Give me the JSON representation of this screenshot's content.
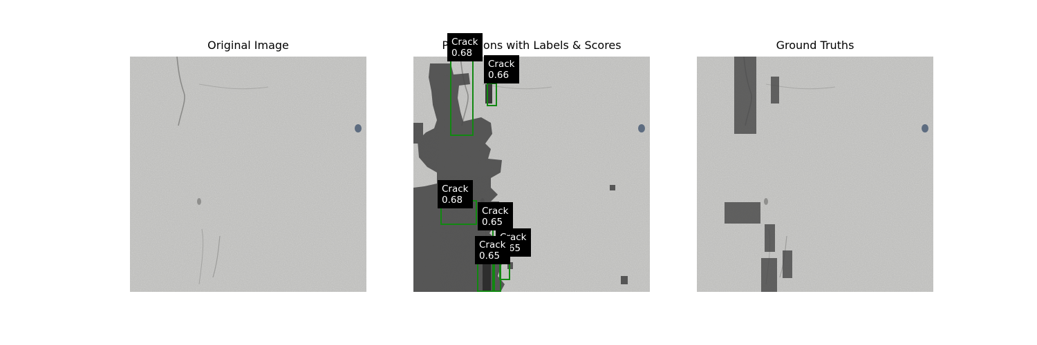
{
  "panels": {
    "original": {
      "title": "Original Image"
    },
    "predictions": {
      "title": "Predictions with Labels & Scores"
    },
    "ground_truth": {
      "title": "Ground Truths"
    }
  },
  "detections": [
    {
      "label": "Crack",
      "score": "0.68"
    },
    {
      "label": "Crack",
      "score": "0.66"
    },
    {
      "label": "Crack",
      "score": "0.68"
    },
    {
      "label": "Crack",
      "score": "0.65"
    },
    {
      "label": "Crack",
      "score": "0.65"
    },
    {
      "label": "Crack",
      "score": "0.65"
    }
  ],
  "colors": {
    "box_outline": "#118811",
    "label_background": "#000000",
    "label_text": "#ffffff",
    "concrete": "#bdbdbb",
    "mask_overlay": "#4a4a4a"
  }
}
